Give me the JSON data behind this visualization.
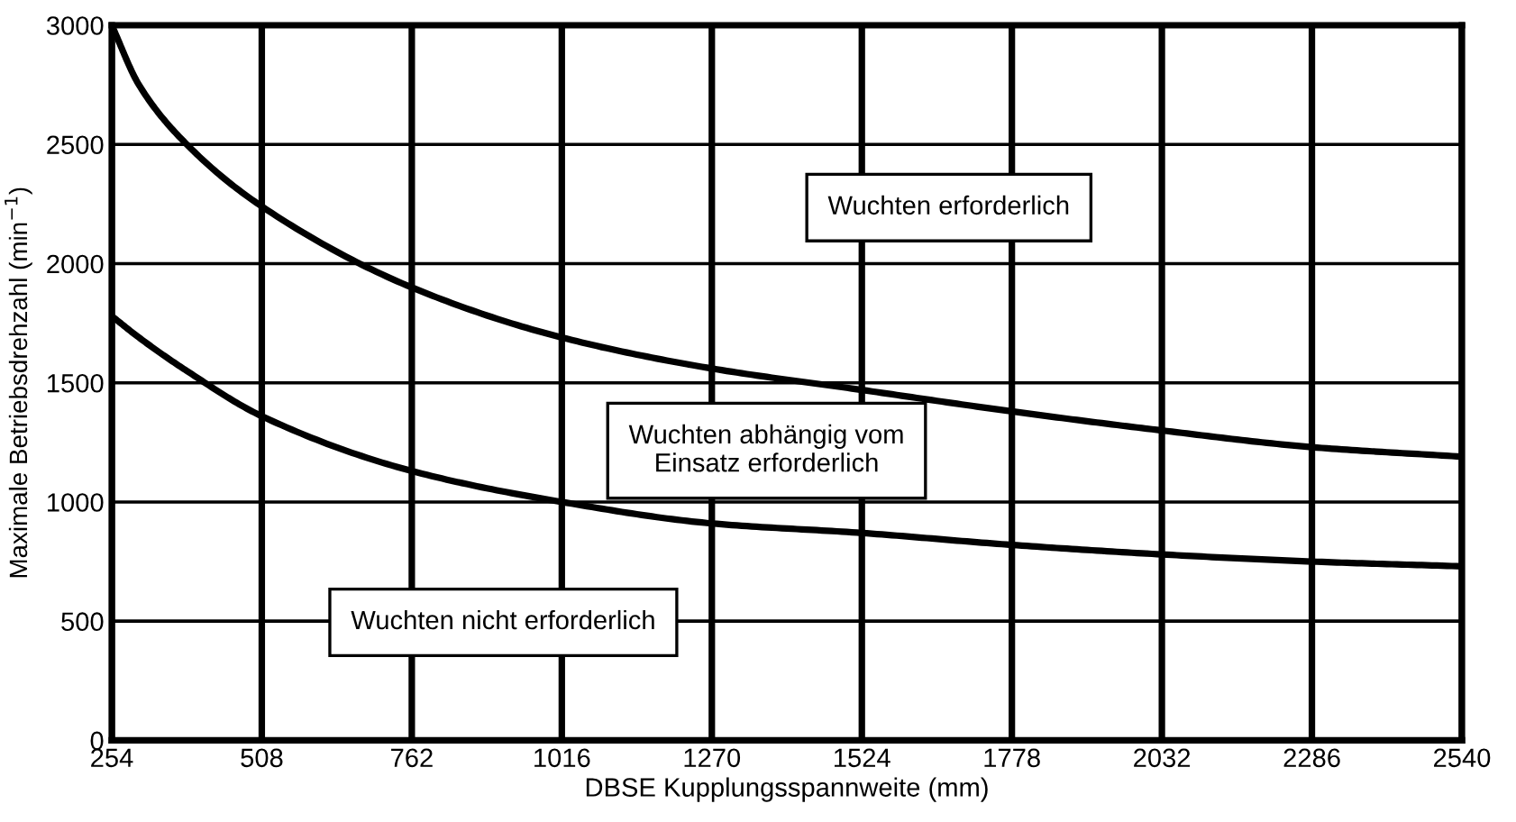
{
  "chart_data": {
    "type": "line",
    "xlabel": "DBSE Kupplungsspannweite (mm)",
    "ylabel": "Maximale Betriebsdrehzahl (min$^{−1}$)",
    "xlim": [
      254,
      2540
    ],
    "ylim": [
      0,
      3000
    ],
    "xticks": [
      254,
      508,
      762,
      1016,
      1270,
      1524,
      1778,
      2032,
      2286,
      2540
    ],
    "yticks": [
      0,
      500,
      1000,
      1500,
      2000,
      2500,
      3000
    ],
    "grid": true,
    "marker": "none",
    "line_style": "solid",
    "series": [
      {
        "color": "#000000",
        "x": [
          254,
          300,
          381,
          508,
          762,
          1016,
          1270,
          1524,
          1778,
          2032,
          2286,
          2540
        ],
        "values": [
          3000,
          2750,
          2500,
          2240,
          1900,
          1690,
          1560,
          1470,
          1380,
          1300,
          1230,
          1190
        ]
      },
      {
        "color": "#000000",
        "x": [
          254,
          300,
          381,
          508,
          762,
          1016,
          1270,
          1524,
          1778,
          2032,
          2286,
          2540
        ],
        "values": [
          1780,
          1690,
          1550,
          1360,
          1130,
          1000,
          910,
          870,
          820,
          780,
          750,
          730
        ]
      }
    ],
    "annotations": [
      "Wuchten erforderlich",
      "Wuchten abhängig vom\nEinsatz erforderlich",
      "Wuchten nicht erforderlich"
    ]
  }
}
